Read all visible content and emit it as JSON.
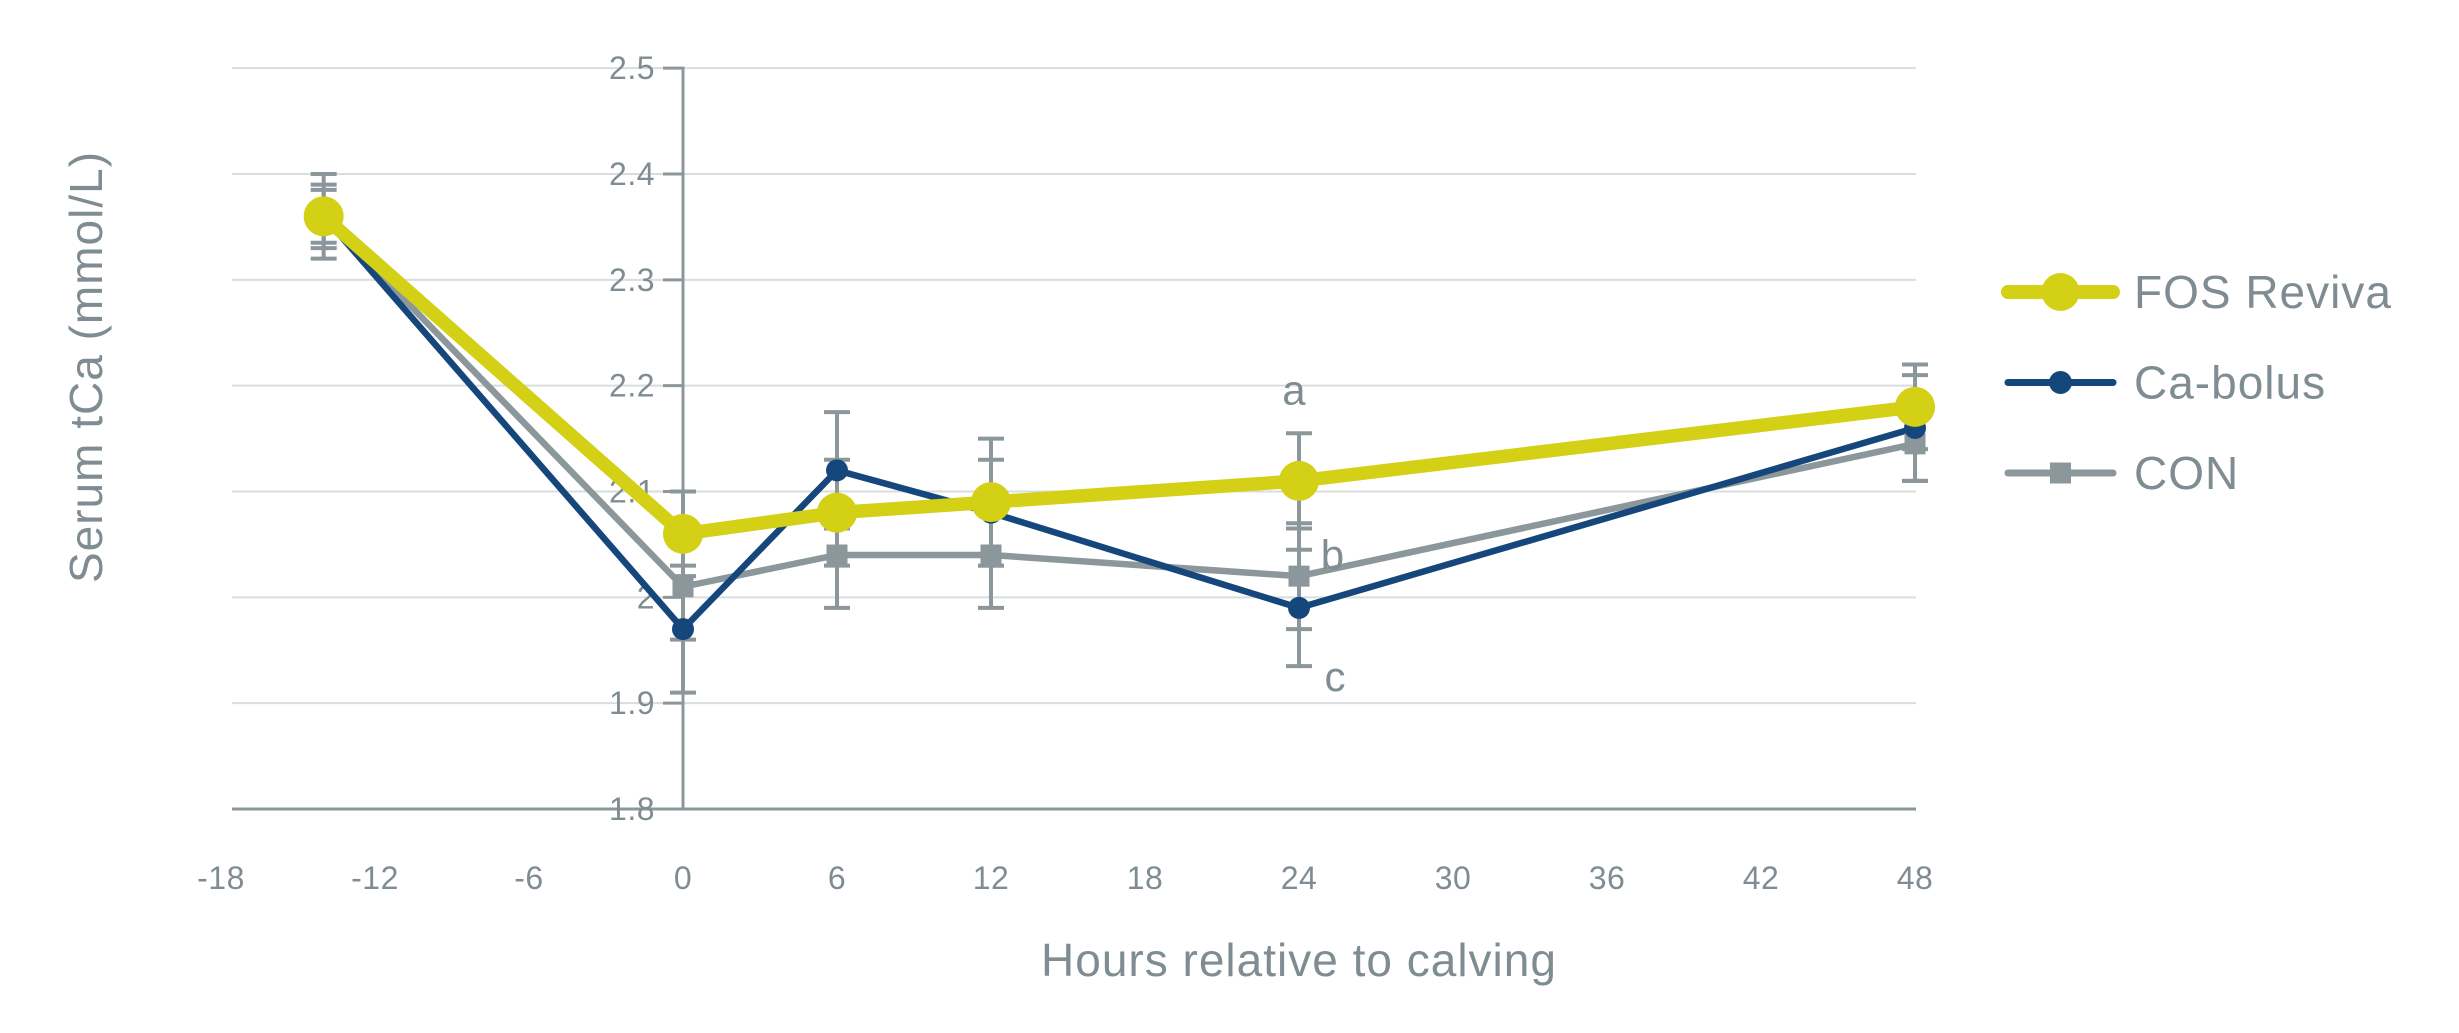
{
  "chart_data": {
    "type": "line",
    "title": "",
    "xlabel": "Hours relative to calving",
    "ylabel": "Serum tCa (mmol/L)",
    "xlim": [
      -18,
      48
    ],
    "ylim": [
      1.8,
      2.5
    ],
    "grid": true,
    "legend_position": "right",
    "x_ticks": [
      {
        "value": -18,
        "label": "-18"
      },
      {
        "value": -12,
        "label": "-12"
      },
      {
        "value": -6,
        "label": "-6"
      },
      {
        "value": 0,
        "label": "0"
      },
      {
        "value": 6,
        "label": "6"
      },
      {
        "value": 12,
        "label": "12"
      },
      {
        "value": 18,
        "label": "18"
      },
      {
        "value": 24,
        "label": "24"
      },
      {
        "value": 30,
        "label": "30"
      },
      {
        "value": 36,
        "label": "36"
      },
      {
        "value": 42,
        "label": "42"
      },
      {
        "value": 48,
        "label": "48"
      }
    ],
    "y_ticks": [
      {
        "value": 2.5,
        "label": "2.5"
      },
      {
        "value": 2.4,
        "label": "2.4"
      },
      {
        "value": 2.3,
        "label": "2.3"
      },
      {
        "value": 2.2,
        "label": "2.2"
      },
      {
        "value": 2.1,
        "label": "2.1"
      },
      {
        "value": 2.0,
        "label": "2"
      },
      {
        "value": 1.9,
        "label": "1.9"
      },
      {
        "value": 1.8,
        "label": "1.8"
      }
    ],
    "series": [
      {
        "name": "FOS Reviva",
        "color": "#d3d015",
        "marker": "circle",
        "emphasis": true,
        "x": [
          -14,
          0,
          6,
          12,
          24,
          48
        ],
        "y": [
          2.36,
          2.06,
          2.08,
          2.09,
          2.11,
          2.18
        ],
        "err": [
          0.03,
          0.04,
          0.05,
          0.06,
          0.045,
          0.04
        ]
      },
      {
        "name": "Ca-bolus",
        "color": "#16477c",
        "marker": "circle",
        "emphasis": false,
        "x": [
          -14,
          0,
          6,
          12,
          24,
          48
        ],
        "y": [
          2.36,
          1.97,
          2.12,
          2.08,
          1.99,
          2.16
        ],
        "err": [
          0.04,
          0.06,
          0.055,
          0.05,
          0.055,
          0.05
        ]
      },
      {
        "name": "CON",
        "color": "#8c979b",
        "marker": "square",
        "emphasis": false,
        "x": [
          -14,
          0,
          6,
          12,
          24,
          48
        ],
        "y": [
          2.36,
          2.01,
          2.04,
          2.04,
          2.02,
          2.145
        ],
        "err": [
          0.025,
          0.05,
          0.05,
          0.05,
          0.05,
          0.035
        ]
      }
    ],
    "annotations": [
      {
        "text": "a",
        "x": 23.8,
        "y": 2.196
      },
      {
        "text": "b",
        "x": 25.3,
        "y": 2.04
      },
      {
        "text": "c",
        "x": 25.4,
        "y": 1.925
      }
    ],
    "error_bar_color": "#8c979b"
  },
  "colors": {
    "background": "#ffffff",
    "grid": "#dadddd",
    "axis": "#8c979b",
    "text": "#7f8d92"
  }
}
